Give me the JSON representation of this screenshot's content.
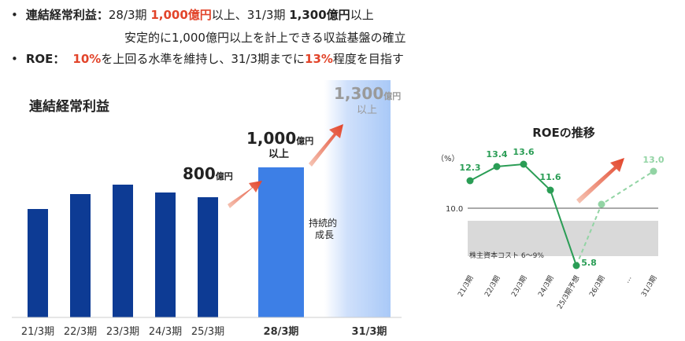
{
  "bullets": {
    "b1": {
      "dot": "•",
      "head": "連結経常利益：",
      "s1": "28/3期 ",
      "v1": "1,000億円",
      "s2": "以上、31/3期 ",
      "v2": "1,300億円",
      "s3": "以上",
      "line2": "安定的に1,000億円以上を計上できる収益基盤の確立"
    },
    "b2": {
      "dot": "•",
      "head": "ROE：",
      "v1": "10%",
      "s1": "を上回る水準を維持し、31/3期までに",
      "v2": "13%",
      "s2": "程度を目指す"
    }
  },
  "colors": {
    "accent_red": "#e2442a",
    "bar_dark": "#0d3b94",
    "bar_mid": "#3d7fe6",
    "bar_light": "#a9c9f7",
    "roe_green": "#2a9d55",
    "roe_green_light": "#92d4a4",
    "band_gray": "#d9d9d9"
  },
  "chart_data": [
    {
      "type": "bar",
      "title": "連結経常利益",
      "categories": [
        "21/3期",
        "22/3期",
        "23/3期",
        "24/3期",
        "25/3期",
        "28/3期",
        "31/3期"
      ],
      "values": [
        720,
        800,
        840,
        810,
        790,
        1000,
        1300
      ],
      "ylim": [
        0,
        1400
      ],
      "annotations": {
        "p800": {
          "num": "800",
          "unit": "億円"
        },
        "p1000": {
          "num": "1,000",
          "unit": "億円",
          "sub": "以上"
        },
        "p1300": {
          "num": "1,300",
          "unit": "億円",
          "sub": "以上"
        },
        "growth": "持続的成長"
      }
    },
    {
      "type": "line",
      "title": "ROEの推移",
      "yunit": "（%）",
      "categories": [
        "21/3期",
        "22/3期",
        "23/3期",
        "24/3期",
        "25/3期予想",
        "26/3期",
        "…",
        "31/3期"
      ],
      "series": [
        {
          "values": [
            12.3,
            13.4,
            13.6,
            11.6,
            5.8,
            null,
            null,
            null
          ]
        },
        {
          "values": [
            null,
            null,
            null,
            null,
            null,
            9.9,
            null,
            13.0
          ]
        }
      ],
      "labels": [
        "12.3",
        "13.4",
        "13.6",
        "11.6",
        "5.8",
        "",
        "",
        "13.0"
      ],
      "reference_line": {
        "value": 10.0,
        "label": "10.0"
      },
      "cost_of_equity_band": {
        "range": [
          6,
          9
        ],
        "label": "株主資本コスト 6～9%"
      },
      "ylim": [
        4,
        15
      ]
    }
  ]
}
